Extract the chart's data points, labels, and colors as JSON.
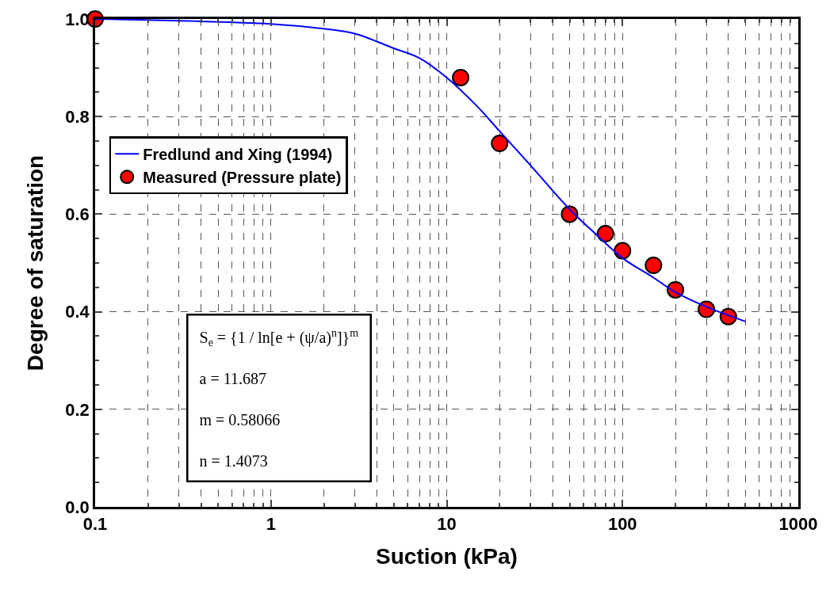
{
  "chart_data": {
    "type": "line",
    "xlabel": "Suction (kPa)",
    "ylabel": "Degree of saturation",
    "log": "x",
    "xlim": [
      0.1,
      1000
    ],
    "xticks": [
      0.1,
      1,
      10,
      100,
      1000
    ],
    "ylim": [
      0,
      1
    ],
    "yticks": [
      {
        "value": 0,
        "label": "0.0"
      },
      0.2,
      0.4,
      0.6,
      0.8,
      {
        "value": 1,
        "label": "1.0"
      }
    ],
    "grid": true,
    "legend": "left",
    "series": [
      {
        "name": "Fredlund and Xing (1994)",
        "marker": "none",
        "color": "#0000ff",
        "x": [
          0.1,
          1,
          2,
          3,
          5,
          7,
          10,
          15,
          20,
          30,
          50,
          70,
          100,
          150,
          200,
          300,
          500
        ],
        "values": [
          1.0,
          0.99,
          0.98,
          0.97,
          0.94,
          0.92,
          0.88,
          0.82,
          0.77,
          0.7,
          0.61,
          0.56,
          0.51,
          0.47,
          0.44,
          0.41,
          0.38
        ]
      },
      {
        "name": "Measured (Pressure plate)",
        "type": "scatter",
        "marker": "circle",
        "color": "#ff0000",
        "x": [
          0.1,
          12,
          20,
          50,
          80,
          100,
          150,
          200,
          300,
          400
        ],
        "values": [
          1.0,
          0.88,
          0.745,
          0.6,
          0.56,
          0.525,
          0.495,
          0.445,
          0.405,
          0.39
        ]
      }
    ],
    "annotations": [
      "S$_{e}$ = {1 / ln[e + (ψ/a)$^{n}$]}$^{m}$",
      "a = 11.687",
      "m = 0.58066",
      "n = 1.4073"
    ]
  }
}
